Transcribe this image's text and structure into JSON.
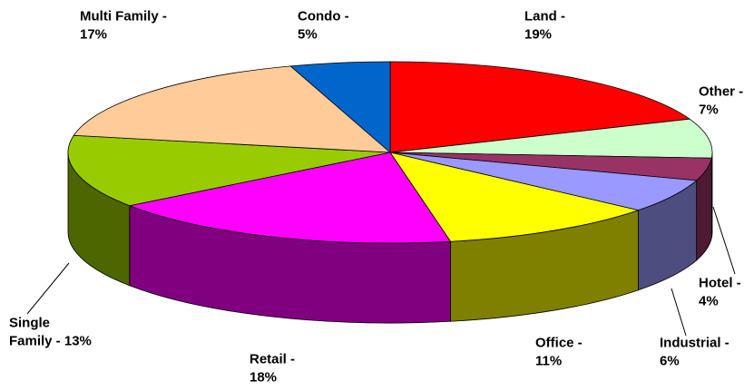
{
  "chart_data": {
    "type": "pie3d",
    "values": [
      19,
      7,
      4,
      6,
      11,
      18,
      13,
      17,
      5
    ],
    "value_labels": [
      [
        "Land -",
        "19%"
      ],
      [
        "Other -",
        "7%"
      ],
      [
        "Hotel -",
        "4%"
      ],
      [
        "Industrial -",
        "6%"
      ],
      [
        "Office -",
        "11%"
      ],
      [
        "Retail -",
        "18%"
      ],
      [
        "Single",
        "Family - 13%"
      ],
      [
        "Multi Family -",
        "17%"
      ],
      [
        "Condo -",
        "5%"
      ]
    ],
    "colors": [
      "#ff0000",
      "#ccffcc",
      "#993366",
      "#9999ff",
      "#ffff00",
      "#ff00ff",
      "#99cc00",
      "#ffcc99",
      "#0066cc"
    ]
  }
}
